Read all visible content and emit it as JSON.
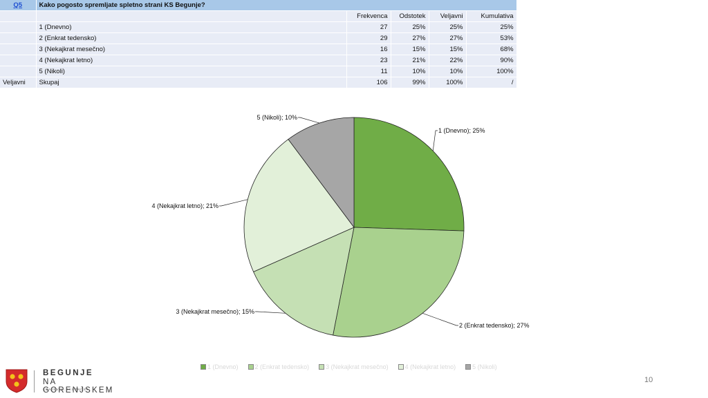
{
  "table": {
    "question_id": "Q5",
    "question": "Kako pogosto spremljate spletno strani KS Begunje?",
    "columns": [
      "Frekvenca",
      "Odstotek",
      "Veljavni",
      "Kumulativa"
    ],
    "rows": [
      {
        "group": "",
        "label": "1 (Dnevno)",
        "values": [
          "27",
          "25%",
          "25%",
          "25%"
        ]
      },
      {
        "group": "",
        "label": "2 (Enkrat tedensko)",
        "values": [
          "29",
          "27%",
          "27%",
          "53%"
        ]
      },
      {
        "group": "",
        "label": "3 (Nekajkrat mesečno)",
        "values": [
          "16",
          "15%",
          "15%",
          "68%"
        ]
      },
      {
        "group": "",
        "label": "4 (Nekajkrat letno)",
        "values": [
          "23",
          "21%",
          "22%",
          "90%"
        ]
      },
      {
        "group": "",
        "label": "5 (Nikoli)",
        "values": [
          "11",
          "10%",
          "10%",
          "100%"
        ]
      },
      {
        "group": "Veljavni",
        "label": "Skupaj",
        "values": [
          "106",
          "99%",
          "100%",
          "/"
        ]
      }
    ]
  },
  "chart_data": {
    "type": "pie",
    "categories": [
      "1 (Dnevno)",
      "2 (Enkrat tedensko)",
      "3 (Nekajkrat mesečno)",
      "4 (Nekajkrat letno)",
      "5 (Nikoli)"
    ],
    "values": [
      25,
      27,
      15,
      21,
      10
    ],
    "data_labels": [
      "1 (Dnevno); 25%",
      "2 (Enkrat tedensko); 27%",
      "3 (Nekajkrat mesečno); 15%",
      "4 (Nekajkrat letno); 21%",
      "5 (Nikoli); 10%"
    ],
    "colors": [
      "#70ad47",
      "#a9d18e",
      "#c5e0b4",
      "#e2f0d9",
      "#a6a6a6"
    ],
    "legend_position": "bottom"
  },
  "logo": {
    "line1": "BEGUNJE",
    "line2": "NA GORENJSKEM",
    "line3": "KRAJEVNA SKUPNOST"
  },
  "page_number": "10"
}
